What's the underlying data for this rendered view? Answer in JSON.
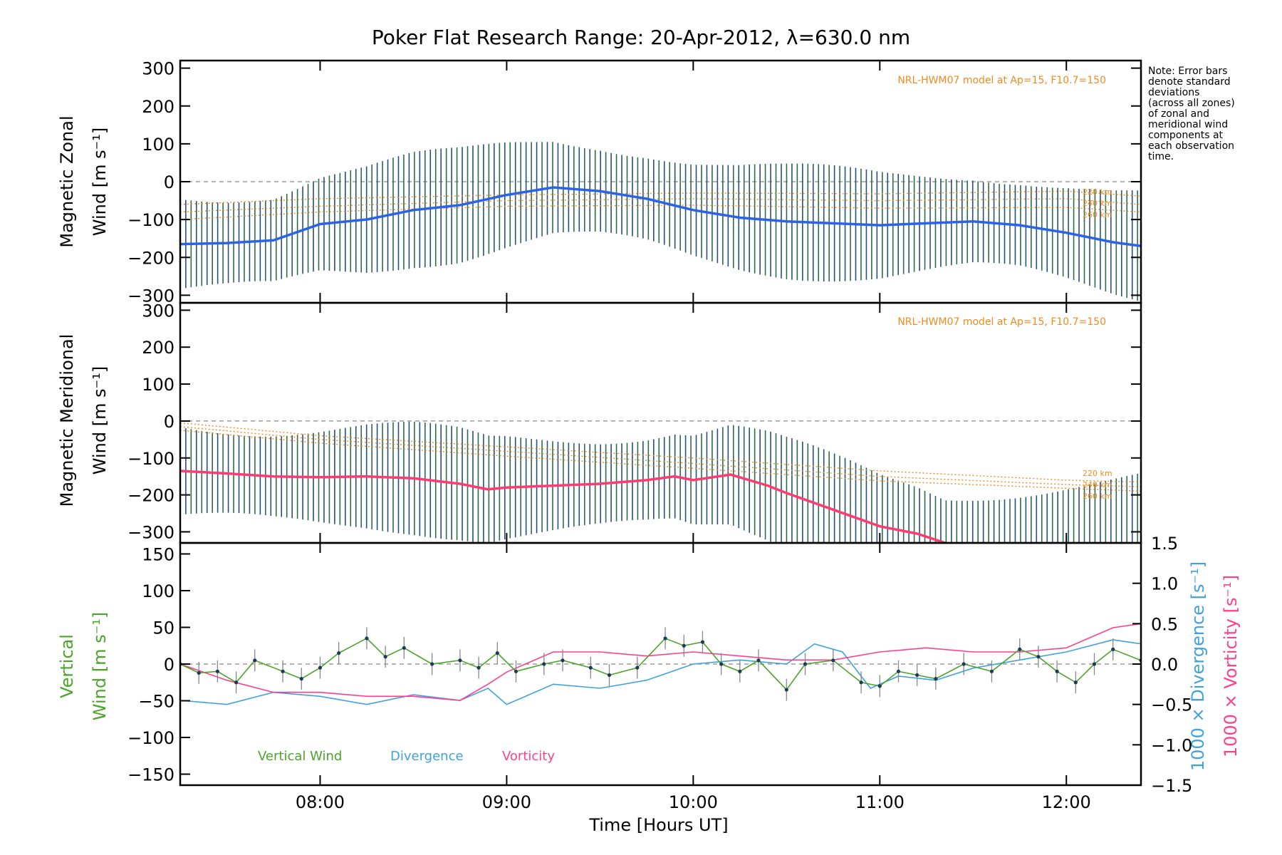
{
  "chart_data": {
    "type": "line",
    "title": "Poker Flat Research Range: 20-Apr-2012, λ=630.0 nm",
    "xlabel": "Time [Hours UT]",
    "x_ticks": [
      "08:00",
      "09:00",
      "10:00",
      "11:00",
      "12:00"
    ],
    "x_range_hours_ut": [
      7.25,
      12.4
    ],
    "note": [
      "Note: Error bars",
      "denote standard",
      "deviations",
      "(across all zones)",
      "of zonal and",
      "meridional wind",
      "components at",
      "each observation",
      "time."
    ],
    "colors": {
      "zonal": "#2a62e8",
      "meridional": "#ff3a6e",
      "vertical": "#4aa52a",
      "divergence": "#3fa2de",
      "vorticity": "#ff3f8e",
      "model": "#f08a1e",
      "error_bar": "#2a5a7a"
    },
    "panels": [
      {
        "id": "zonal",
        "ylabel_line1": "Magnetic Zonal",
        "ylabel_line2": "Wind [m s⁻¹]",
        "ylim": [
          -320,
          320
        ],
        "yticks": [
          "300",
          "200",
          "100",
          "0",
          "−100",
          "−200",
          "−300"
        ],
        "model_label": "NRL-HWM07 model at Ap=15, F10.7=150",
        "model_altitudes": [
          "220 km",
          "240 km",
          "260 km"
        ],
        "series": [
          {
            "name": "mean",
            "points": [
              [
                7.25,
                -165
              ],
              [
                7.5,
                -162
              ],
              [
                7.75,
                -155
              ],
              [
                8.0,
                -112
              ],
              [
                8.25,
                -100
              ],
              [
                8.5,
                -75
              ],
              [
                8.75,
                -62
              ],
              [
                9.0,
                -35
              ],
              [
                9.25,
                -15
              ],
              [
                9.5,
                -25
              ],
              [
                9.75,
                -45
              ],
              [
                10.0,
                -75
              ],
              [
                10.25,
                -95
              ],
              [
                10.5,
                -105
              ],
              [
                10.75,
                -110
              ],
              [
                11.0,
                -115
              ],
              [
                11.25,
                -110
              ],
              [
                11.5,
                -105
              ],
              [
                11.75,
                -115
              ],
              [
                12.0,
                -135
              ],
              [
                12.25,
                -160
              ],
              [
                12.4,
                -170
              ]
            ]
          }
        ],
        "model_curves": [
          {
            "points": [
              [
                7.25,
                -60
              ],
              [
                8.0,
                -45
              ],
              [
                9.0,
                -35
              ],
              [
                10.0,
                -30
              ],
              [
                11.0,
                -32
              ],
              [
                12.0,
                -25
              ],
              [
                12.4,
                -38
              ]
            ]
          },
          {
            "points": [
              [
                7.25,
                -80
              ],
              [
                8.0,
                -65
              ],
              [
                9.0,
                -50
              ],
              [
                10.0,
                -45
              ],
              [
                11.0,
                -50
              ],
              [
                12.0,
                -45
              ],
              [
                12.4,
                -60
              ]
            ]
          },
          {
            "points": [
              [
                7.25,
                -100
              ],
              [
                8.0,
                -80
              ],
              [
                9.0,
                -65
              ],
              [
                10.0,
                -62
              ],
              [
                11.0,
                -70
              ],
              [
                12.0,
                -68
              ],
              [
                12.4,
                -80
              ]
            ]
          }
        ]
      },
      {
        "id": "meridional",
        "ylabel_line1": "Magnetic Meridional",
        "ylabel_line2": "Wind [m s⁻¹]",
        "ylim": [
          -330,
          320
        ],
        "yticks": [
          "300",
          "200",
          "100",
          "0",
          "−100",
          "−200",
          "−300"
        ],
        "model_label": "NRL-HWM07 model at Ap=15, F10.7=150",
        "model_altitudes": [
          "220 km",
          "240 km",
          "260 km"
        ],
        "series": [
          {
            "name": "mean",
            "points": [
              [
                7.25,
                -135
              ],
              [
                7.5,
                -142
              ],
              [
                7.75,
                -150
              ],
              [
                8.0,
                -152
              ],
              [
                8.25,
                -150
              ],
              [
                8.5,
                -155
              ],
              [
                8.75,
                -170
              ],
              [
                8.9,
                -185
              ],
              [
                9.0,
                -180
              ],
              [
                9.5,
                -170
              ],
              [
                9.75,
                -160
              ],
              [
                9.9,
                -150
              ],
              [
                10.0,
                -160
              ],
              [
                10.2,
                -145
              ],
              [
                10.4,
                -175
              ],
              [
                10.5,
                -195
              ],
              [
                10.75,
                -240
              ],
              [
                11.0,
                -285
              ],
              [
                11.2,
                -305
              ],
              [
                11.35,
                -330
              ]
            ]
          }
        ],
        "model_curves": [
          {
            "points": [
              [
                7.25,
                -5
              ],
              [
                8.0,
                -40
              ],
              [
                9.0,
                -70
              ],
              [
                10.0,
                -100
              ],
              [
                11.0,
                -135
              ],
              [
                12.0,
                -160
              ],
              [
                12.4,
                -165
              ]
            ]
          },
          {
            "points": [
              [
                7.25,
                -15
              ],
              [
                8.0,
                -50
              ],
              [
                9.0,
                -82
              ],
              [
                10.0,
                -115
              ],
              [
                11.0,
                -150
              ],
              [
                12.0,
                -172
              ],
              [
                12.4,
                -178
              ]
            ]
          },
          {
            "points": [
              [
                7.25,
                -25
              ],
              [
                8.0,
                -60
              ],
              [
                9.0,
                -95
              ],
              [
                10.0,
                -128
              ],
              [
                11.0,
                -162
              ],
              [
                12.0,
                -182
              ],
              [
                12.4,
                -190
              ]
            ]
          }
        ]
      },
      {
        "id": "vertical",
        "ylabel_line1": "Vertical",
        "ylabel_line2": "Wind [m s⁻¹]",
        "ylim": [
          -165,
          165
        ],
        "yticks": [
          "150",
          "100",
          "50",
          "0",
          "−50",
          "−100",
          "−150"
        ],
        "right_ylim": [
          -1.5,
          1.5
        ],
        "right_yticks": [
          "1.5",
          "1.0",
          "0.5",
          "0.0",
          "−0.5",
          "−1.0",
          "−1.5"
        ],
        "right_label_div": "1000 × Divergence [s⁻¹]",
        "right_label_vort": "1000 × Vorticity [s⁻¹]",
        "legend": [
          "Vertical Wind",
          "Divergence",
          "Vorticity"
        ],
        "series": [
          {
            "name": "Vertical Wind",
            "points": [
              [
                7.25,
                0
              ],
              [
                7.35,
                -12
              ],
              [
                7.45,
                -10
              ],
              [
                7.55,
                -25
              ],
              [
                7.65,
                5
              ],
              [
                7.8,
                -10
              ],
              [
                7.9,
                -20
              ],
              [
                8.0,
                -5
              ],
              [
                8.1,
                15
              ],
              [
                8.25,
                35
              ],
              [
                8.35,
                10
              ],
              [
                8.45,
                22
              ],
              [
                8.6,
                0
              ],
              [
                8.75,
                5
              ],
              [
                8.85,
                -5
              ],
              [
                8.95,
                15
              ],
              [
                9.05,
                -10
              ],
              [
                9.2,
                0
              ],
              [
                9.3,
                5
              ],
              [
                9.45,
                -5
              ],
              [
                9.55,
                -15
              ],
              [
                9.7,
                -5
              ],
              [
                9.85,
                35
              ],
              [
                9.95,
                25
              ],
              [
                10.05,
                30
              ],
              [
                10.15,
                0
              ],
              [
                10.25,
                -10
              ],
              [
                10.35,
                5
              ],
              [
                10.5,
                -35
              ],
              [
                10.6,
                0
              ],
              [
                10.75,
                5
              ],
              [
                10.9,
                -25
              ],
              [
                11.0,
                -30
              ],
              [
                11.1,
                -10
              ],
              [
                11.2,
                -15
              ],
              [
                11.3,
                -20
              ],
              [
                11.45,
                0
              ],
              [
                11.6,
                -10
              ],
              [
                11.75,
                20
              ],
              [
                11.85,
                10
              ],
              [
                11.95,
                -10
              ],
              [
                12.05,
                -25
              ],
              [
                12.15,
                0
              ],
              [
                12.25,
                20
              ],
              [
                12.4,
                5
              ]
            ]
          },
          {
            "name": "Divergence",
            "points": [
              [
                7.25,
                -0.45
              ],
              [
                7.5,
                -0.5
              ],
              [
                7.75,
                -0.35
              ],
              [
                8.0,
                -0.4
              ],
              [
                8.25,
                -0.5
              ],
              [
                8.5,
                -0.38
              ],
              [
                8.75,
                -0.45
              ],
              [
                8.9,
                -0.3
              ],
              [
                9.0,
                -0.5
              ],
              [
                9.25,
                -0.25
              ],
              [
                9.5,
                -0.3
              ],
              [
                9.75,
                -0.2
              ],
              [
                10.0,
                0.0
              ],
              [
                10.25,
                0.05
              ],
              [
                10.5,
                0.0
              ],
              [
                10.65,
                0.25
              ],
              [
                10.8,
                0.15
              ],
              [
                10.95,
                -0.3
              ],
              [
                11.1,
                -0.15
              ],
              [
                11.3,
                -0.2
              ],
              [
                11.5,
                -0.05
              ],
              [
                11.75,
                0.05
              ],
              [
                12.0,
                0.15
              ],
              [
                12.25,
                0.3
              ],
              [
                12.4,
                0.25
              ]
            ]
          },
          {
            "name": "Vorticity",
            "points": [
              [
                7.25,
                0.0
              ],
              [
                7.5,
                -0.2
              ],
              [
                7.75,
                -0.35
              ],
              [
                8.0,
                -0.35
              ],
              [
                8.25,
                -0.4
              ],
              [
                8.5,
                -0.4
              ],
              [
                8.75,
                -0.45
              ],
              [
                8.9,
                -0.25
              ],
              [
                9.0,
                -0.1
              ],
              [
                9.25,
                0.15
              ],
              [
                9.5,
                0.15
              ],
              [
                9.75,
                0.1
              ],
              [
                10.0,
                0.15
              ],
              [
                10.25,
                0.1
              ],
              [
                10.5,
                0.05
              ],
              [
                10.75,
                0.05
              ],
              [
                11.0,
                0.15
              ],
              [
                11.25,
                0.2
              ],
              [
                11.5,
                0.15
              ],
              [
                11.75,
                0.15
              ],
              [
                12.0,
                0.2
              ],
              [
                12.25,
                0.45
              ],
              [
                12.4,
                0.5
              ]
            ]
          }
        ]
      }
    ]
  }
}
